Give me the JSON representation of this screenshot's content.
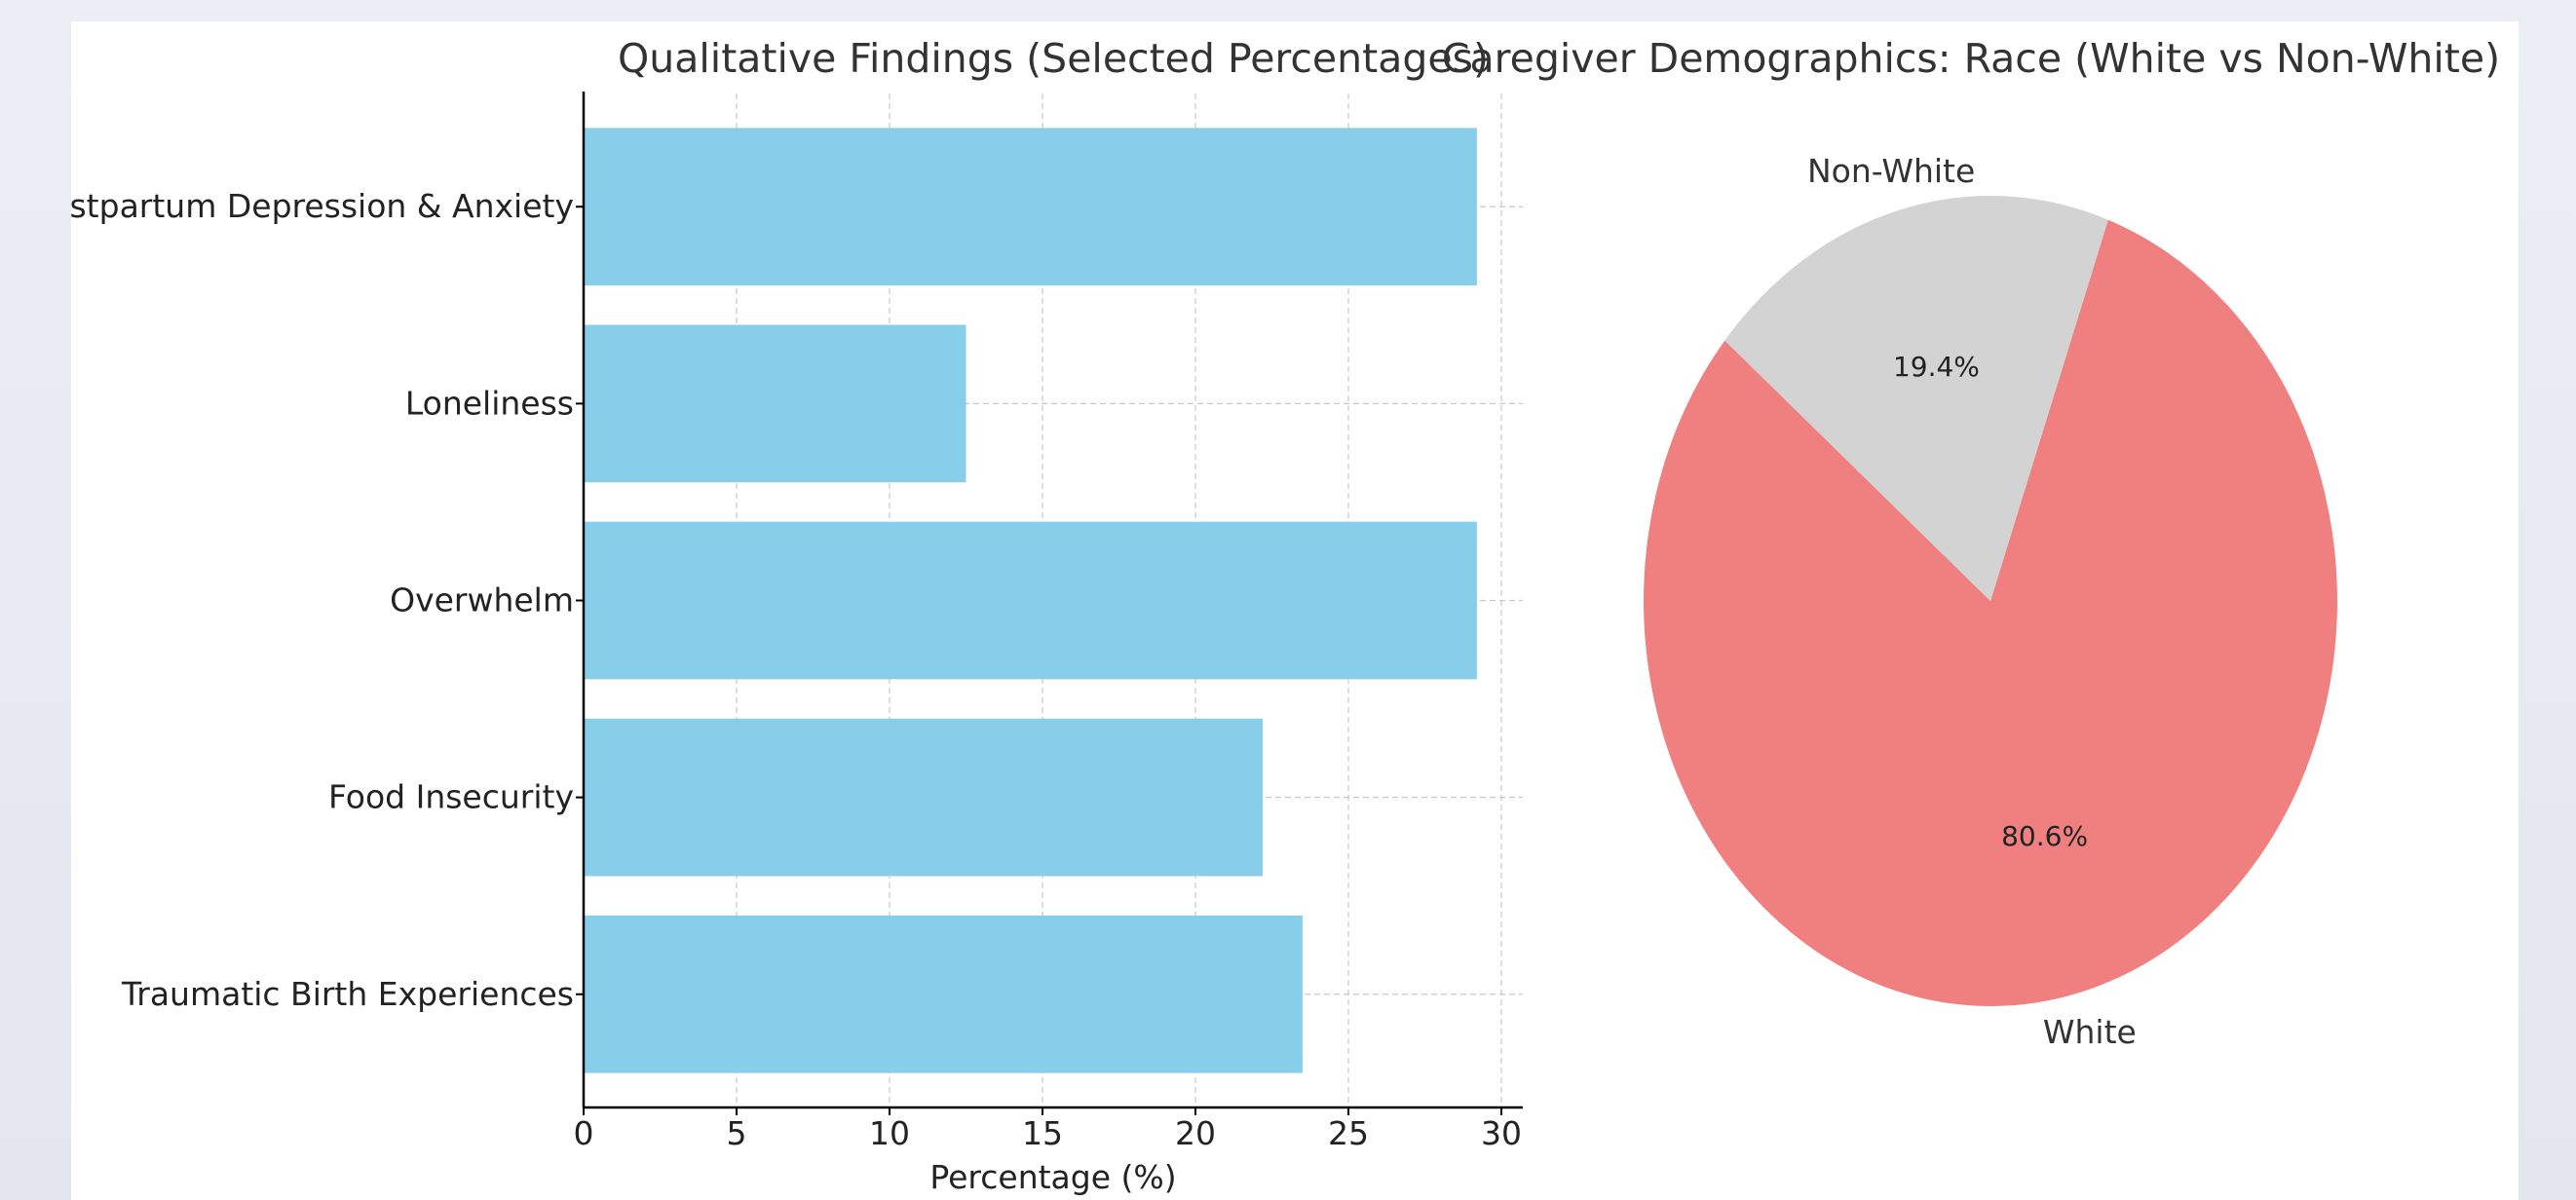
{
  "colors": {
    "bar": "#87ceeb",
    "white_slice": "#f08080",
    "nonwhite_slice": "#d3d3d3",
    "text": "#222222",
    "title_text": "#333333",
    "grid": "#c8c8c8",
    "axis": "#000000"
  },
  "chart_data": [
    {
      "type": "bar",
      "orientation": "horizontal",
      "title": "Qualitative Findings (Selected Percentages)",
      "xlabel": "Percentage (%)",
      "ylabel": "",
      "categories": [
        "Postpartum Depression & Anxiety",
        "Loneliness",
        "Overwhelm",
        "Food Insecurity",
        "Traumatic Birth Experiences"
      ],
      "values": [
        29.2,
        12.5,
        29.2,
        22.2,
        23.5
      ],
      "xlim": [
        0,
        30.7
      ],
      "xticks": [
        0,
        5,
        10,
        15,
        20,
        25,
        30
      ],
      "grid": true
    },
    {
      "type": "pie",
      "title": "Caregiver Demographics: Race (White vs Non-White)",
      "labels": [
        "White",
        "Non-White"
      ],
      "values": [
        80.6,
        19.4
      ],
      "value_labels": [
        "80.6%",
        "19.4%"
      ],
      "start_angle_deg": 140,
      "direction": "counterclockwise"
    }
  ]
}
